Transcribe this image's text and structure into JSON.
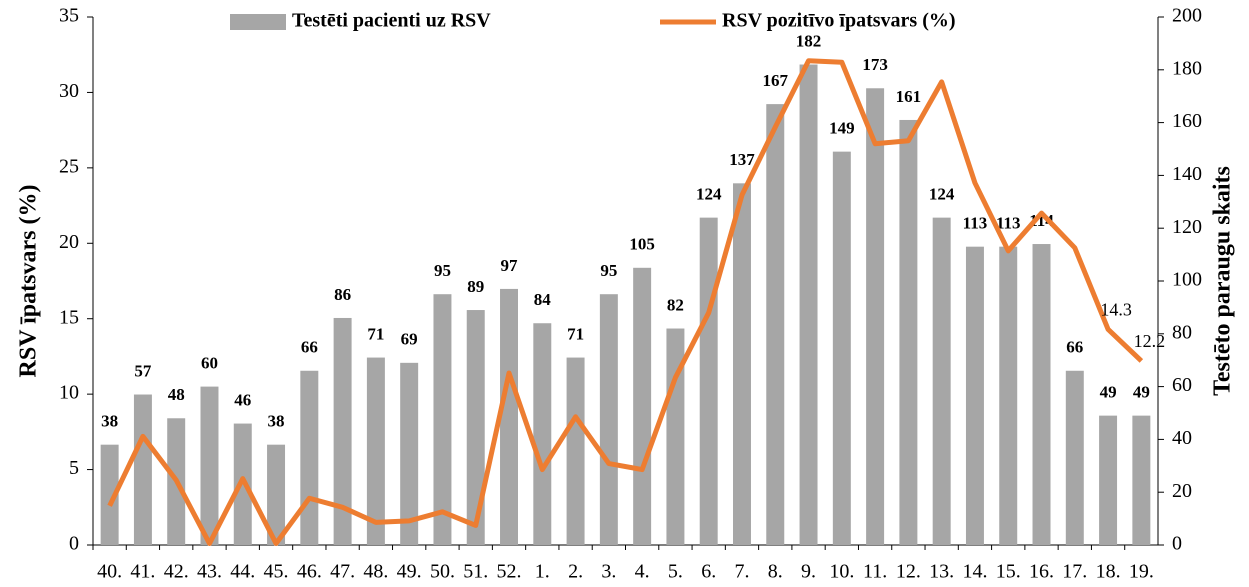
{
  "chart_data": {
    "type": "bar-line",
    "categories": [
      "40.",
      "41.",
      "42.",
      "43.",
      "44.",
      "45.",
      "46.",
      "47.",
      "48.",
      "49.",
      "50.",
      "51.",
      "52.",
      "1.",
      "2.",
      "3.",
      "4.",
      "5.",
      "6.",
      "7.",
      "8.",
      "9.",
      "10.",
      "11.",
      "12.",
      "13.",
      "14.",
      "15.",
      "16.",
      "17.",
      "18.",
      "19."
    ],
    "series": [
      {
        "name": "Testēti pacienti uz RSV",
        "type": "bar",
        "axis": "y2",
        "color": "#a6a6a6",
        "show_values": true,
        "values": [
          38,
          57,
          48,
          60,
          46,
          38,
          66,
          86,
          71,
          69,
          95,
          89,
          97,
          84,
          71,
          95,
          105,
          82,
          124,
          137,
          167,
          182,
          149,
          173,
          161,
          124,
          113,
          113,
          114,
          66,
          49,
          49
        ]
      },
      {
        "name": "RSV pozitīvo īpatsvars (%)",
        "type": "line",
        "axis": "y",
        "color": "#ed7d31",
        "values": [
          2.6,
          7.2,
          4.3,
          0.1,
          4.4,
          0.1,
          3.1,
          2.5,
          1.5,
          1.6,
          2.2,
          1.3,
          11.4,
          5.0,
          8.5,
          5.4,
          5.0,
          11.1,
          15.4,
          23.2,
          27.7,
          32.1,
          32.0,
          26.6,
          26.8,
          30.7,
          24.0,
          19.5,
          22.0,
          19.7,
          14.3,
          12.2
        ],
        "value_labels": [
          null,
          null,
          null,
          null,
          null,
          null,
          null,
          null,
          null,
          null,
          null,
          null,
          null,
          null,
          null,
          null,
          null,
          null,
          null,
          null,
          null,
          null,
          null,
          null,
          null,
          null,
          null,
          null,
          null,
          null,
          "14.3",
          "12.2"
        ]
      }
    ],
    "y_label": "RSV īpatsvars (%)",
    "y2_label": "Testēto paraugu skaits",
    "ylim": [
      0,
      35
    ],
    "yticks": [
      0,
      5,
      10,
      15,
      20,
      25,
      30,
      35
    ],
    "y2lim": [
      0,
      200
    ],
    "y2ticks": [
      0,
      20,
      40,
      60,
      80,
      100,
      120,
      140,
      160,
      180,
      200
    ],
    "grid": false,
    "legend": "top"
  }
}
